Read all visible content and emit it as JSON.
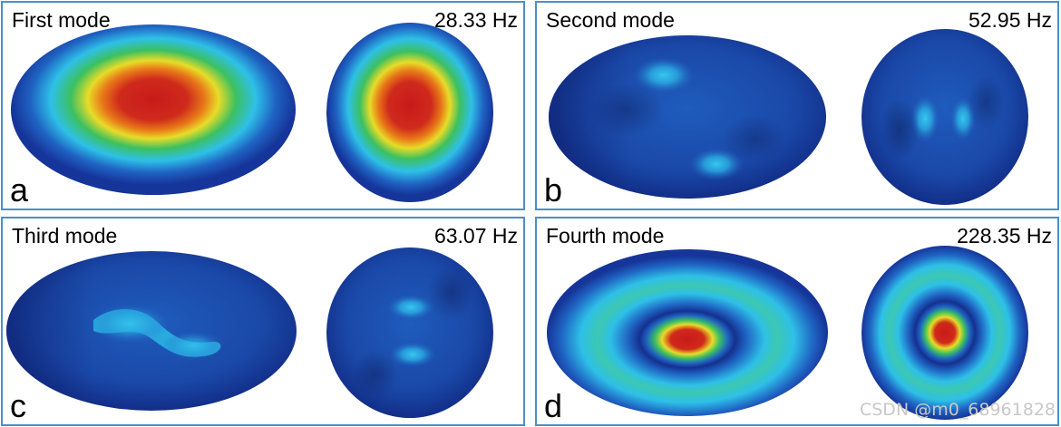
{
  "panels": [
    {
      "title": "First mode",
      "frequency": "28.33 Hz",
      "letter": "a"
    },
    {
      "title": "Second mode",
      "frequency": "52.95 Hz",
      "letter": "b"
    },
    {
      "title": "Third mode",
      "frequency": "63.07 Hz",
      "letter": "c"
    },
    {
      "title": "Fourth mode",
      "frequency": "228.35 Hz",
      "letter": "d"
    }
  ],
  "watermark": "CSDN @m0_68961828",
  "colors": {
    "border": "#4a90c8",
    "deep_blue": "#16359a",
    "mid_blue": "#1f63c2",
    "cyan": "#2ec0e8",
    "green": "#3cc060",
    "yellow": "#e8dc28",
    "orange": "#e87818",
    "red": "#c81a1a"
  }
}
